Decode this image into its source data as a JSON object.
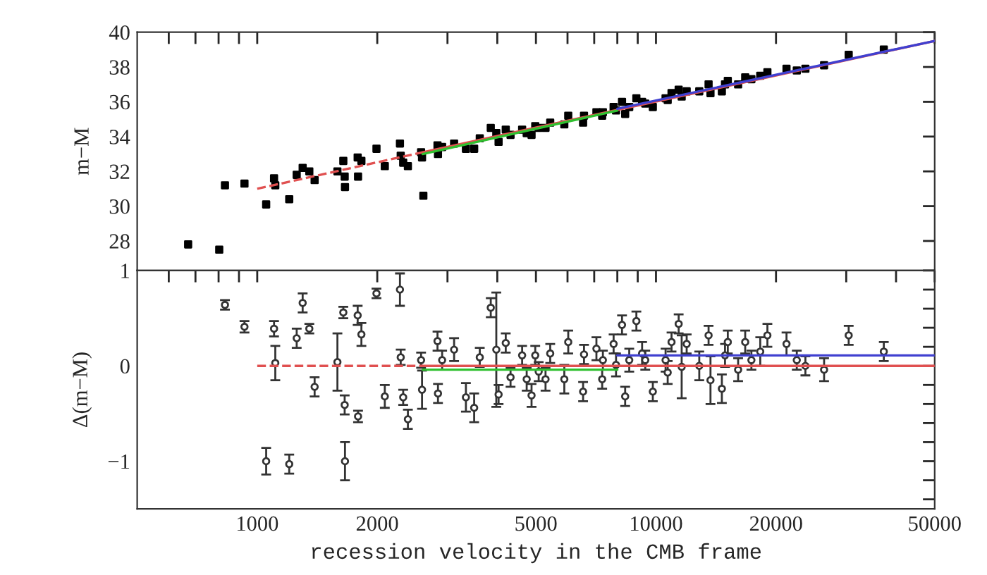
{
  "chart_data": [
    {
      "type": "scatter",
      "ylabel": "m−M",
      "log": "x",
      "xlim": [
        500,
        50000
      ],
      "ylim": [
        26.3,
        40
      ],
      "grid": false,
      "tick_labels": "y",
      "xticks": [
        {
          "value": 600,
          "label": null
        },
        {
          "value": 700,
          "label": null
        },
        {
          "value": 800,
          "label": null
        },
        {
          "value": 900,
          "label": null
        },
        {
          "value": 1000,
          "label": null
        },
        {
          "value": 2000,
          "label": null
        },
        {
          "value": 3000,
          "label": null
        },
        {
          "value": 4000,
          "label": null
        },
        {
          "value": 5000,
          "label": null
        },
        {
          "value": 6000,
          "label": null
        },
        {
          "value": 7000,
          "label": null
        },
        {
          "value": 8000,
          "label": null
        },
        {
          "value": 9000,
          "label": null
        },
        {
          "value": 10000,
          "label": null
        },
        {
          "value": 20000,
          "label": null
        },
        {
          "value": 30000,
          "label": null
        },
        {
          "value": 40000,
          "label": null
        },
        {
          "value": 50000,
          "label": null
        }
      ],
      "yticks": [
        28,
        30,
        32,
        34,
        36,
        38,
        40
      ],
      "series": [
        {
          "color": "#000000",
          "marker": "square",
          "x": [
            671,
            803,
            2610,
            830,
            929,
            1053,
            1102,
            1110,
            1203,
            1256,
            1300,
            1351,
            1393,
            1589,
            1644,
            1657,
            1660,
            1786,
            1825,
            1790,
            1991,
            2089,
            2280,
            2290,
            2323,
            2387,
            2576,
            2590,
            2832,
            2840,
            2909,
            3117,
            3337,
            3500,
            3615,
            3852,
            3977,
            4030,
            4200,
            4318,
            4617,
            4740,
            4875,
            4980,
            5080,
            5285,
            5430,
            5890,
            6025,
            6565,
            6600,
            7090,
            7330,
            7360,
            7830,
            7940,
            8220,
            8370,
            8570,
            8930,
            9230,
            9400,
            9820,
            10570,
            10700,
            10940,
            11400,
            11600,
            11940,
            12840,
            13550,
            13700,
            14630,
            14900,
            15140,
            16070,
            16740,
            17350,
            18260,
            19030,
            21250,
            22550,
            23700,
            26400,
            30430,
            37270
          ],
          "values": [
            27.8,
            27.5,
            30.6,
            31.2,
            31.3,
            30.1,
            31.6,
            31.2,
            30.4,
            31.8,
            32.2,
            32.0,
            31.5,
            32.0,
            32.6,
            31.7,
            31.1,
            32.8,
            32.6,
            31.7,
            33.3,
            32.3,
            33.6,
            32.9,
            32.5,
            32.3,
            33.1,
            32.8,
            33.5,
            33.0,
            33.4,
            33.6,
            33.3,
            33.3,
            33.9,
            34.5,
            34.2,
            33.7,
            34.4,
            34.1,
            34.4,
            34.2,
            34.1,
            34.6,
            34.5,
            34.5,
            34.8,
            34.7,
            35.2,
            34.8,
            35.2,
            35.4,
            35.2,
            35.4,
            35.7,
            35.5,
            36.0,
            35.3,
            35.7,
            36.2,
            36.0,
            35.9,
            35.7,
            36.2,
            36.1,
            36.5,
            36.7,
            36.3,
            36.6,
            36.6,
            37.0,
            36.5,
            36.6,
            37.0,
            37.2,
            37.0,
            37.4,
            37.3,
            37.5,
            37.7,
            37.9,
            37.8,
            37.9,
            38.1,
            38.7,
            39.0
          ]
        },
        {
          "type": "line",
          "color": "#e05050",
          "line_style": "dashed",
          "x": [
            1000,
            2600
          ],
          "values": [
            31.0,
            33.1
          ]
        },
        {
          "type": "line",
          "color": "#e05050",
          "line_style": "solid",
          "x": [
            2600,
            50000
          ],
          "values": [
            33.1,
            39.5
          ]
        },
        {
          "type": "line",
          "color": "#30c030",
          "line_style": "solid",
          "x": [
            2600,
            8000
          ],
          "values": [
            33.0,
            35.5
          ]
        },
        {
          "type": "line",
          "color": "#4040d0",
          "line_style": "solid",
          "x": [
            8000,
            50000
          ],
          "values": [
            35.6,
            39.5
          ]
        }
      ]
    },
    {
      "type": "scatter",
      "ylabel": "Δ(m−M)",
      "xlabel": "recession velocity in the CMB frame",
      "log": "x",
      "xlim": [
        500,
        50000
      ],
      "ylim": [
        -1.5,
        1
      ],
      "grid": false,
      "xticks": [
        {
          "value": 600,
          "label": null
        },
        {
          "value": 700,
          "label": null
        },
        {
          "value": 800,
          "label": null
        },
        {
          "value": 900,
          "label": null
        },
        1000,
        2000,
        {
          "value": 3000,
          "label": null
        },
        {
          "value": 4000,
          "label": null
        },
        5000,
        {
          "value": 6000,
          "label": null
        },
        {
          "value": 7000,
          "label": null
        },
        {
          "value": 8000,
          "label": null
        },
        {
          "value": 9000,
          "label": null
        },
        10000,
        20000,
        {
          "value": 30000,
          "label": null
        },
        {
          "value": 40000,
          "label": null
        },
        50000
      ],
      "yticks": [
        {
          "value": -1.4,
          "label": null
        },
        {
          "value": -1.2,
          "label": null
        },
        {
          "value": -1,
          "label": "−1"
        },
        {
          "value": -0.8,
          "label": null
        },
        {
          "value": -0.6,
          "label": null
        },
        {
          "value": -0.4,
          "label": null
        },
        {
          "value": -0.2,
          "label": null
        },
        0,
        {
          "value": 0.2,
          "label": null
        },
        {
          "value": 0.4,
          "label": null
        },
        {
          "value": 0.6,
          "label": null
        },
        {
          "value": 0.8,
          "label": null
        },
        1
      ],
      "series": [
        {
          "color": "#333333",
          "marker": "circle",
          "x": [
            830,
            929,
            1053,
            1102,
            1110,
            1203,
            1256,
            1300,
            1351,
            1393,
            1589,
            1644,
            1657,
            1660,
            1786,
            1825,
            1790,
            1991,
            2089,
            2280,
            2290,
            2323,
            2387,
            2576,
            2590,
            2832,
            2840,
            2909,
            3117,
            3337,
            3500,
            3615,
            3852,
            3977,
            4030,
            4200,
            4318,
            4617,
            4740,
            4875,
            4980,
            5080,
            5285,
            5430,
            5890,
            6025,
            6565,
            6600,
            7090,
            7330,
            7360,
            7830,
            7940,
            8220,
            8370,
            8570,
            8930,
            9230,
            9400,
            9820,
            10570,
            10700,
            10940,
            11400,
            11600,
            11940,
            12840,
            13550,
            13700,
            14630,
            14900,
            15140,
            16070,
            16740,
            17350,
            18260,
            19030,
            21250,
            22550,
            23700,
            26400,
            30430,
            37270
          ],
          "values": [
            0.64,
            0.41,
            -1.0,
            0.39,
            0.03,
            -1.03,
            0.29,
            0.66,
            0.39,
            -0.22,
            0.04,
            0.56,
            -0.41,
            -1.0,
            0.53,
            0.33,
            -0.53,
            0.76,
            -0.32,
            0.8,
            0.09,
            -0.33,
            -0.56,
            0.06,
            -0.25,
            0.26,
            -0.29,
            0.06,
            0.17,
            -0.33,
            -0.44,
            0.09,
            0.61,
            0.17,
            -0.3,
            0.24,
            -0.12,
            0.11,
            -0.14,
            -0.31,
            0.11,
            -0.06,
            -0.14,
            0.13,
            -0.14,
            0.25,
            -0.27,
            0.12,
            0.18,
            -0.14,
            0.06,
            0.23,
            0.01,
            0.43,
            -0.32,
            0.06,
            0.47,
            0.13,
            0.06,
            -0.27,
            0.06,
            -0.07,
            0.25,
            0.44,
            -0.01,
            0.23,
            0.0,
            0.32,
            -0.15,
            -0.24,
            0.11,
            0.25,
            -0.04,
            0.25,
            0.06,
            0.15,
            0.32,
            0.23,
            0.06,
            0.0,
            -0.04,
            0.32,
            0.15
          ],
          "errors": [
            0.05,
            0.06,
            0.14,
            0.08,
            0.18,
            0.1,
            0.1,
            0.1,
            0.05,
            0.1,
            0.3,
            0.06,
            0.1,
            0.2,
            0.1,
            0.12,
            0.06,
            0.05,
            0.12,
            0.17,
            0.08,
            0.08,
            0.1,
            0.08,
            0.2,
            0.1,
            0.1,
            0.1,
            0.12,
            0.15,
            0.15,
            0.1,
            0.1,
            0.6,
            0.1,
            0.1,
            0.1,
            0.1,
            0.12,
            0.12,
            0.1,
            0.1,
            0.12,
            0.1,
            0.15,
            0.12,
            0.1,
            0.1,
            0.12,
            0.1,
            0.1,
            0.1,
            0.12,
            0.1,
            0.1,
            0.12,
            0.1,
            0.12,
            0.1,
            0.1,
            0.12,
            0.12,
            0.1,
            0.1,
            0.33,
            0.1,
            0.15,
            0.1,
            0.25,
            0.15,
            0.12,
            0.12,
            0.12,
            0.12,
            0.1,
            0.15,
            0.12,
            0.12,
            0.1,
            0.1,
            0.12,
            0.1,
            0.1
          ]
        },
        {
          "type": "line",
          "color": "#e05050",
          "line_style": "dashed",
          "x": [
            1000,
            2600
          ],
          "values": [
            0,
            0
          ]
        },
        {
          "type": "line",
          "color": "#e05050",
          "line_style": "solid",
          "x": [
            2600,
            50000
          ],
          "values": [
            0,
            0
          ]
        },
        {
          "type": "line",
          "color": "#30c030",
          "line_style": "solid",
          "x": [
            2600,
            8000
          ],
          "values": [
            -0.04,
            -0.04
          ]
        },
        {
          "type": "line",
          "color": "#4040d0",
          "line_style": "solid",
          "x": [
            8000,
            50000
          ],
          "values": [
            0.11,
            0.11
          ]
        }
      ]
    }
  ]
}
